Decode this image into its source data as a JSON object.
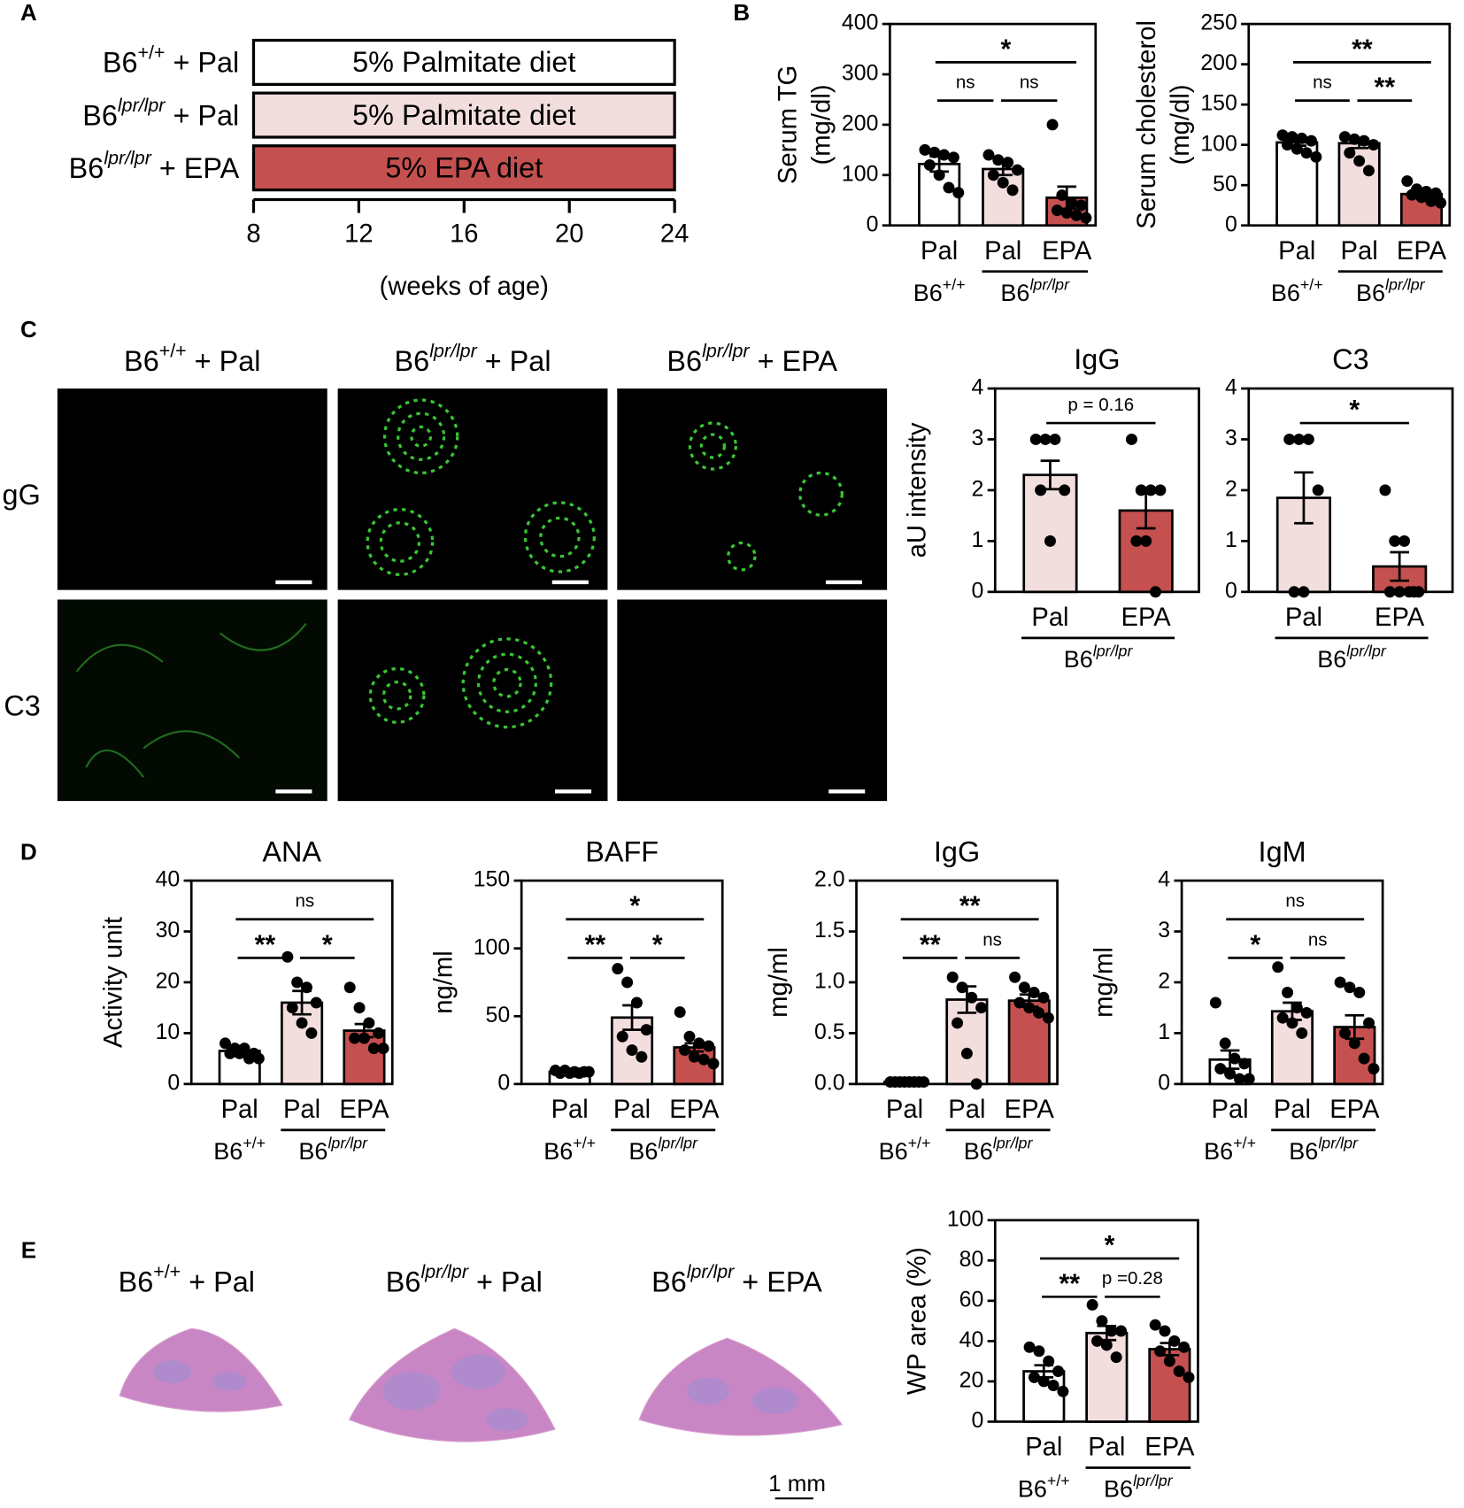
{
  "panels": [
    "A",
    "B",
    "C",
    "D",
    "E"
  ],
  "micrographs": {
    "columns": [
      {
        "base": "B6",
        "sup": "+/+",
        "suffix": " + Pal"
      },
      {
        "base": "B6",
        "sup": "lpr/lpr",
        "suffix": " + Pal"
      },
      {
        "base": "B6",
        "sup": "lpr/lpr",
        "suffix": " + EPA"
      }
    ],
    "rows": [
      "IgG",
      "C3"
    ]
  },
  "histology": {
    "columns": [
      {
        "base": "B6",
        "sup": "+/+",
        "suffix": " + Pal"
      },
      {
        "base": "B6",
        "sup": "lpr/lpr",
        "suffix": " + Pal"
      },
      {
        "base": "B6",
        "sup": "lpr/lpr",
        "suffix": " + EPA"
      }
    ],
    "scale_bar": "1 mm"
  },
  "chart_data": [
    {
      "type": "timeline",
      "rows": [
        {
          "label": {
            "base": "B6",
            "sup": "+/+",
            "suffix": " + Pal"
          },
          "text": "5% Palmitate diet",
          "start": 8,
          "end": 24,
          "color": "#ffffff",
          "text_color": "#000000"
        },
        {
          "label": {
            "base": "B6",
            "sup": "lpr/lpr",
            "suffix": " + Pal"
          },
          "text": "5% Palmitate diet",
          "start": 8,
          "end": 24,
          "color": "#f3dede",
          "text_color": "#000000"
        },
        {
          "label": {
            "base": "B6",
            "sup": "lpr/lpr",
            "suffix": " + EPA"
          },
          "text": "5% EPA diet",
          "start": 8,
          "end": 24,
          "color": "#c4504f",
          "text_color": "#ffffff"
        }
      ],
      "xlim": [
        8,
        24
      ],
      "xticks": [
        8,
        12,
        16,
        20,
        24
      ],
      "xlabel": "(weeks of age)"
    },
    {
      "type": "bar",
      "ylabel": [
        "Serum TG",
        "(mg/dl)"
      ],
      "categories": [
        "Pal",
        "Pal",
        "EPA"
      ],
      "groups": [
        {
          "base": "B6",
          "sup": "+/+"
        },
        {
          "base": "B6",
          "sup": "lpr/lpr"
        }
      ],
      "colors": [
        "#ffffff",
        "#f3dede",
        "#c4504f"
      ],
      "values": [
        122,
        112,
        55
      ],
      "errors": [
        15,
        12,
        22
      ],
      "points": [
        [
          150,
          145,
          140,
          135,
          120,
          100,
          75,
          65
        ],
        [
          140,
          130,
          125,
          110,
          100,
          85,
          70
        ],
        [
          200,
          60,
          45,
          40,
          30,
          25,
          20,
          15
        ]
      ],
      "ylim": [
        0,
        400
      ],
      "yticks": [
        0,
        100,
        200,
        300,
        400
      ],
      "annotations": [
        {
          "label": "*",
          "from": 0,
          "to": 2
        },
        {
          "label": "ns",
          "from": 0,
          "to": 1
        },
        {
          "label": "ns",
          "from": 1,
          "to": 2
        }
      ]
    },
    {
      "type": "bar",
      "ylabel": [
        "Serum cholesterol",
        "(mg/dl)"
      ],
      "categories": [
        "Pal",
        "Pal",
        "EPA"
      ],
      "groups": [
        {
          "base": "B6",
          "sup": "+/+"
        },
        {
          "base": "B6",
          "sup": "lpr/lpr"
        }
      ],
      "colors": [
        "#ffffff",
        "#f3dede",
        "#c4504f"
      ],
      "values": [
        103,
        102,
        39
      ],
      "errors": [
        4,
        6,
        3
      ],
      "points": [
        [
          112,
          110,
          108,
          105,
          100,
          95,
          90,
          85
        ],
        [
          110,
          107,
          105,
          100,
          90,
          80,
          68
        ],
        [
          55,
          45,
          42,
          40,
          38,
          35,
          30,
          28
        ]
      ],
      "ylim": [
        0,
        250
      ],
      "yticks": [
        0,
        50,
        100,
        150,
        200,
        250
      ],
      "annotations": [
        {
          "label": "**",
          "from": 0,
          "to": 2
        },
        {
          "label": "ns",
          "from": 0,
          "to": 1
        },
        {
          "label": "**",
          "from": 1,
          "to": 2
        }
      ]
    },
    {
      "type": "bar",
      "title": "IgG",
      "ylabel": [
        "aU intensity"
      ],
      "categories": [
        "Pal",
        "EPA"
      ],
      "groups": [
        {
          "base": "B6",
          "sup": "lpr/lpr"
        }
      ],
      "colors": [
        "#f3dede",
        "#c4504f"
      ],
      "values": [
        2.3,
        1.6
      ],
      "errors": [
        0.28,
        0.35
      ],
      "points": [
        [
          3,
          3,
          3,
          2,
          2,
          1
        ],
        [
          3,
          2,
          2,
          2,
          1,
          1,
          0
        ]
      ],
      "ylim": [
        0,
        4
      ],
      "yticks": [
        0,
        1,
        2,
        3,
        4
      ],
      "annotations": [
        {
          "label": "p = 0.16",
          "from": 0,
          "to": 1
        }
      ]
    },
    {
      "type": "bar",
      "title": "C3",
      "categories": [
        "Pal",
        "EPA"
      ],
      "groups": [
        {
          "base": "B6",
          "sup": "lpr/lpr"
        }
      ],
      "colors": [
        "#f3dede",
        "#c4504f"
      ],
      "values": [
        1.85,
        0.5
      ],
      "errors": [
        0.5,
        0.28
      ],
      "points": [
        [
          3,
          3,
          3,
          2,
          0,
          0
        ],
        [
          2,
          1,
          1,
          0,
          0,
          0,
          0,
          0
        ]
      ],
      "ylim": [
        0,
        4
      ],
      "yticks": [
        0,
        1,
        2,
        3,
        4
      ],
      "annotations": [
        {
          "label": "*",
          "from": 0,
          "to": 1
        }
      ]
    },
    {
      "type": "bar",
      "title": "ANA",
      "ylabel": [
        "Activity unit"
      ],
      "categories": [
        "Pal",
        "Pal",
        "EPA"
      ],
      "groups": [
        {
          "base": "B6",
          "sup": "+/+"
        },
        {
          "base": "B6",
          "sup": "lpr/lpr"
        }
      ],
      "colors": [
        "#ffffff",
        "#f3dede",
        "#c4504f"
      ],
      "values": [
        6.5,
        16,
        10.5
      ],
      "errors": [
        1,
        2.3,
        1.3
      ],
      "points": [
        [
          8,
          7,
          7,
          6,
          6,
          6,
          5,
          5
        ],
        [
          25,
          20,
          19,
          16,
          15,
          12,
          10
        ],
        [
          19,
          15,
          12,
          10,
          9,
          9,
          7,
          7
        ]
      ],
      "ylim": [
        0,
        40
      ],
      "yticks": [
        0,
        10,
        20,
        30,
        40
      ],
      "annotations": [
        {
          "label": "ns",
          "from": 0,
          "to": 2
        },
        {
          "label": "**",
          "from": 0,
          "to": 1
        },
        {
          "label": "*",
          "from": 1,
          "to": 2
        }
      ]
    },
    {
      "type": "bar",
      "title": "BAFF",
      "ylabel": [
        "ng/ml"
      ],
      "categories": [
        "Pal",
        "Pal",
        "EPA"
      ],
      "groups": [
        {
          "base": "B6",
          "sup": "+/+"
        },
        {
          "base": "B6",
          "sup": "lpr/lpr"
        }
      ],
      "colors": [
        "#ffffff",
        "#f3dede",
        "#c4504f"
      ],
      "values": [
        9,
        49,
        27
      ],
      "errors": [
        1,
        9,
        3
      ],
      "points": [
        [
          10,
          10,
          9,
          9,
          8,
          8,
          8,
          9
        ],
        [
          85,
          75,
          60,
          40,
          35,
          25,
          20
        ],
        [
          53,
          35,
          30,
          28,
          25,
          20,
          18,
          15
        ]
      ],
      "ylim": [
        0,
        150
      ],
      "yticks": [
        0,
        50,
        100,
        150
      ],
      "annotations": [
        {
          "label": "*",
          "from": 0,
          "to": 2
        },
        {
          "label": "**",
          "from": 0,
          "to": 1
        },
        {
          "label": "*",
          "from": 1,
          "to": 2
        }
      ]
    },
    {
      "type": "bar",
      "title": "IgG",
      "ylabel": [
        "mg/ml"
      ],
      "categories": [
        "Pal",
        "Pal",
        "EPA"
      ],
      "groups": [
        {
          "base": "B6",
          "sup": "+/+"
        },
        {
          "base": "B6",
          "sup": "lpr/lpr"
        }
      ],
      "colors": [
        "#ffffff",
        "#f3dede",
        "#c4504f"
      ],
      "values": [
        0.02,
        0.83,
        0.82
      ],
      "errors": [
        0.005,
        0.13,
        0.06
      ],
      "points": [
        [
          0.02,
          0.02,
          0.02,
          0.02,
          0.02,
          0.02,
          0.02,
          0.02
        ],
        [
          1.05,
          0.95,
          0.85,
          0.75,
          0.6,
          0.3,
          0
        ],
        [
          1.05,
          0.95,
          0.9,
          0.85,
          0.8,
          0.75,
          0.7,
          0.65
        ]
      ],
      "ylim": [
        0,
        2
      ],
      "yticks": [
        {
          "value": 0,
          "label": "0.0"
        },
        0.5,
        {
          "value": 1,
          "label": "1.0"
        },
        1.5,
        {
          "value": 2,
          "label": "2.0"
        }
      ],
      "annotations": [
        {
          "label": "**",
          "from": 0,
          "to": 2
        },
        {
          "label": "**",
          "from": 0,
          "to": 1
        },
        {
          "label": "ns",
          "from": 1,
          "to": 2
        }
      ]
    },
    {
      "type": "bar",
      "title": "IgM",
      "ylabel": [
        "mg/ml"
      ],
      "categories": [
        "Pal",
        "Pal",
        "EPA"
      ],
      "groups": [
        {
          "base": "B6",
          "sup": "+/+"
        },
        {
          "base": "B6",
          "sup": "lpr/lpr"
        }
      ],
      "colors": [
        "#ffffff",
        "#f3dede",
        "#c4504f"
      ],
      "values": [
        0.48,
        1.43,
        1.12
      ],
      "errors": [
        0.18,
        0.17,
        0.23
      ],
      "points": [
        [
          1.6,
          0.8,
          0.5,
          0.4,
          0.3,
          0.2,
          0.1,
          0.1
        ],
        [
          2.3,
          1.8,
          1.5,
          1.4,
          1.3,
          1.2,
          1
        ],
        [
          2,
          1.9,
          1.8,
          1.2,
          1,
          0.8,
          0.5,
          0.3
        ]
      ],
      "ylim": [
        0,
        4
      ],
      "yticks": [
        0,
        1,
        2,
        3,
        4
      ],
      "annotations": [
        {
          "label": "ns",
          "from": 0,
          "to": 2
        },
        {
          "label": "*",
          "from": 0,
          "to": 1
        },
        {
          "label": "ns",
          "from": 1,
          "to": 2
        }
      ]
    },
    {
      "type": "bar",
      "ylabel": [
        "WP area (%)"
      ],
      "categories": [
        "Pal",
        "Pal",
        "EPA"
      ],
      "groups": [
        {
          "base": "B6",
          "sup": "+/+"
        },
        {
          "base": "B6",
          "sup": "lpr/lpr"
        }
      ],
      "colors": [
        "#ffffff",
        "#f3dede",
        "#c4504f"
      ],
      "values": [
        25,
        44,
        36
      ],
      "errors": [
        3,
        3.5,
        3
      ],
      "points": [
        [
          37,
          35,
          30,
          25,
          22,
          20,
          18,
          15
        ],
        [
          58,
          50,
          45,
          45,
          40,
          38,
          32
        ],
        [
          48,
          45,
          40,
          37,
          35,
          30,
          25,
          22
        ]
      ],
      "ylim": [
        0,
        100
      ],
      "yticks": [
        0,
        20,
        40,
        60,
        80,
        100
      ],
      "annotations": [
        {
          "label": "*",
          "from": 0,
          "to": 2
        },
        {
          "label": "**",
          "from": 0,
          "to": 1
        },
        {
          "label": "p =0.28",
          "from": 1,
          "to": 2
        }
      ]
    }
  ]
}
